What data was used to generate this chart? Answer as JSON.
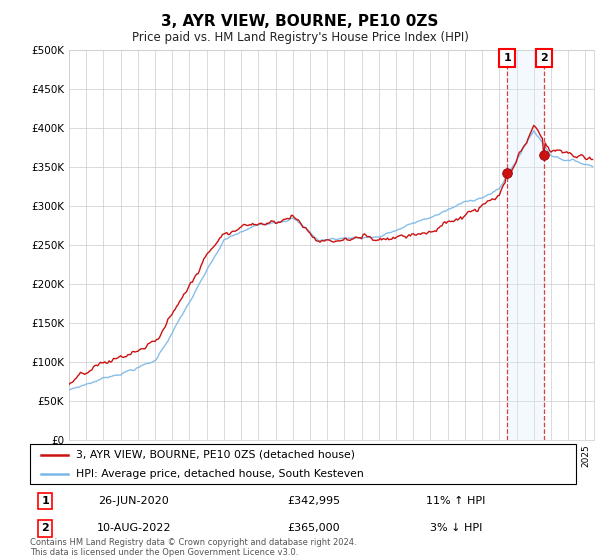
{
  "title": "3, AYR VIEW, BOURNE, PE10 0ZS",
  "subtitle": "Price paid vs. HM Land Registry's House Price Index (HPI)",
  "ylim": [
    0,
    500000
  ],
  "yticks": [
    0,
    50000,
    100000,
    150000,
    200000,
    250000,
    300000,
    350000,
    400000,
    450000,
    500000
  ],
  "ytick_labels": [
    "£0",
    "£50K",
    "£100K",
    "£150K",
    "£200K",
    "£250K",
    "£300K",
    "£350K",
    "£400K",
    "£450K",
    "£500K"
  ],
  "hpi_color": "#7ab8e8",
  "price_color": "#cc1111",
  "shade_color": "#ddeeff",
  "grid_color": "#cccccc",
  "sale1_t": 2020.458,
  "sale1_price": 342995,
  "sale2_t": 2022.583,
  "sale2_price": 365000,
  "footer": "Contains HM Land Registry data © Crown copyright and database right 2024.\nThis data is licensed under the Open Government Licence v3.0.",
  "legend_line1": "3, AYR VIEW, BOURNE, PE10 0ZS (detached house)",
  "legend_line2": "HPI: Average price, detached house, South Kesteven",
  "table_row1": [
    "1",
    "26-JUN-2020",
    "£342,995",
    "11% ↑ HPI"
  ],
  "table_row2": [
    "2",
    "10-AUG-2022",
    "£365,000",
    "3% ↓ HPI"
  ],
  "background_color": "#ffffff",
  "xlim_start": 1995,
  "xlim_end": 2025.5
}
